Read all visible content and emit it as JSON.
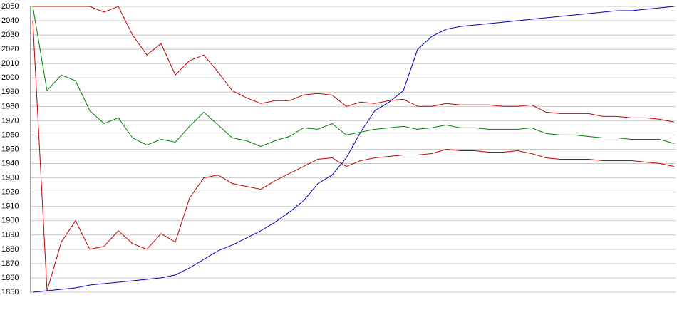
{
  "chart_data": {
    "type": "line",
    "categories": [
      null,
      null,
      null,
      null,
      null,
      null,
      null,
      null,
      null,
      null,
      null,
      null,
      null,
      null,
      null,
      null,
      null,
      null,
      null,
      null,
      null,
      null,
      null,
      null,
      null,
      null,
      null,
      null,
      null,
      null,
      null,
      null,
      null,
      null,
      null,
      null,
      null,
      null,
      null,
      null,
      null,
      null,
      null,
      null,
      null,
      null
    ],
    "ylim": [
      1850,
      2050
    ],
    "yticks": [
      1850,
      1860,
      1870,
      1880,
      1890,
      1900,
      1910,
      1920,
      1930,
      1940,
      1950,
      1960,
      1970,
      1980,
      1990,
      2000,
      2010,
      2020,
      2030,
      2040,
      2050
    ],
    "grid": true,
    "series": [
      {
        "color": "#0000c0",
        "values": [
          1850,
          1851,
          1852,
          1853,
          1855,
          1856,
          1857,
          1858,
          1859,
          1860,
          1862,
          1867,
          1873,
          1879,
          1883,
          1888,
          1893,
          1899,
          1906,
          1914,
          1926,
          1932,
          1944,
          1962,
          1977,
          1983,
          1991,
          2020,
          2029,
          2034,
          2036,
          2037,
          2038,
          2039,
          2040,
          2041,
          2042,
          2043,
          2044,
          2045,
          2046,
          2047,
          2047,
          2048,
          2049,
          2050
        ]
      },
      {
        "color": "#c00000",
        "values": [
          2050,
          2050,
          2050,
          2050,
          2050,
          2046,
          2050,
          2030,
          2016,
          2024,
          2002,
          2012,
          2016,
          2004,
          1991,
          1986,
          1982,
          1984,
          1984,
          1988,
          1989,
          1988,
          1980,
          1983,
          1982,
          1984,
          1985,
          1980,
          1980,
          1982,
          1981,
          1981,
          1981,
          1980,
          1980,
          1981,
          1976,
          1975,
          1975,
          1975,
          1973,
          1973,
          1972,
          1972,
          1971,
          1969
        ]
      },
      {
        "color": "#008000",
        "values": [
          2050,
          1991,
          2002,
          1998,
          1977,
          1968,
          1972,
          1958,
          1953,
          1957,
          1955,
          1966,
          1976,
          1967,
          1958,
          1956,
          1952,
          1956,
          1959,
          1965,
          1964,
          1968,
          1960,
          1962,
          1964,
          1965,
          1966,
          1964,
          1965,
          1967,
          1965,
          1965,
          1964,
          1964,
          1964,
          1965,
          1961,
          1960,
          1960,
          1959,
          1958,
          1958,
          1957,
          1957,
          1957,
          1954
        ]
      },
      {
        "color": "#c00000",
        "values": [
          2040,
          1851,
          1885,
          1900,
          1880,
          1882,
          1893,
          1884,
          1880,
          1891,
          1885,
          1916,
          1930,
          1932,
          1926,
          1924,
          1922,
          1928,
          1933,
          1938,
          1943,
          1944,
          1938,
          1942,
          1944,
          1945,
          1946,
          1946,
          1947,
          1950,
          1949,
          1949,
          1948,
          1948,
          1949,
          1947,
          1944,
          1943,
          1943,
          1943,
          1942,
          1942,
          1942,
          1941,
          1940,
          1938
        ]
      }
    ]
  }
}
